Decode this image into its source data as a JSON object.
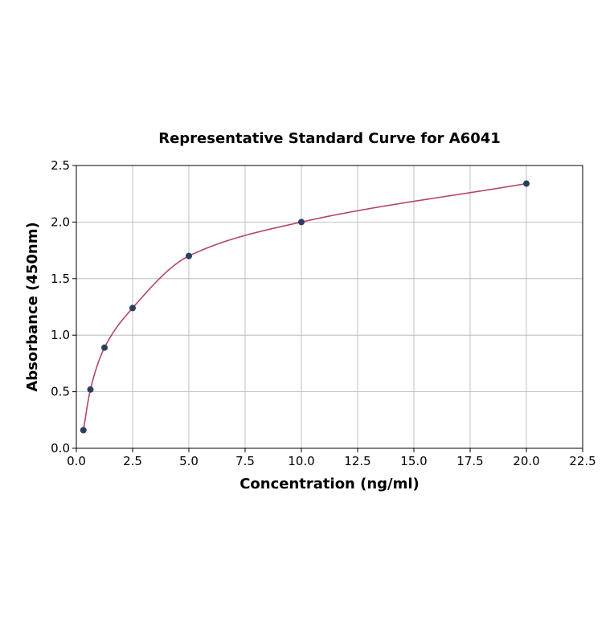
{
  "chart_data": {
    "type": "scatter",
    "title": "Representative Standard Curve for A6041",
    "xlabel": "Concentration (ng/ml)",
    "ylabel": "Absorbance (450nm)",
    "xlim": [
      0,
      22.5
    ],
    "ylim": [
      0,
      2.5
    ],
    "xticks": [
      "0.0",
      "2.5",
      "5.0",
      "7.5",
      "10.0",
      "12.5",
      "15.0",
      "17.5",
      "20.0",
      "22.5"
    ],
    "yticks": [
      "0.0",
      "0.5",
      "1.0",
      "1.5",
      "2.0",
      "2.5"
    ],
    "grid": true,
    "series": [
      {
        "points": [
          {
            "x": 0.3125,
            "y": 0.16
          },
          {
            "x": 0.625,
            "y": 0.52
          },
          {
            "x": 1.25,
            "y": 0.89
          },
          {
            "x": 2.5,
            "y": 1.24
          },
          {
            "x": 5.0,
            "y": 1.7
          },
          {
            "x": 10.0,
            "y": 2.0
          },
          {
            "x": 20.0,
            "y": 2.34
          }
        ],
        "color": "#2c3e5c"
      }
    ],
    "fit_curve": {
      "color": "#b5456b"
    }
  }
}
